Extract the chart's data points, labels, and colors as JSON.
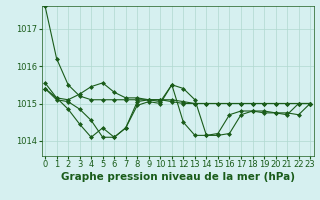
{
  "title": "Graphe pression niveau de la mer (hPa)",
  "bg_color": "#d6f0f0",
  "grid_color": "#b0d8d0",
  "line_color": "#1a5c1a",
  "ylim": [
    1013.6,
    1017.6
  ],
  "xlim": [
    -0.3,
    23.3
  ],
  "yticks": [
    1014,
    1015,
    1016,
    1017
  ],
  "xticks": [
    0,
    1,
    2,
    3,
    4,
    5,
    6,
    7,
    8,
    9,
    10,
    11,
    12,
    13,
    14,
    15,
    16,
    17,
    18,
    19,
    20,
    21,
    22,
    23
  ],
  "series": [
    [
      1017.6,
      1016.2,
      1015.5,
      1015.2,
      1015.1,
      1015.1,
      1015.1,
      1015.1,
      1015.1,
      1015.1,
      1015.1,
      1015.1,
      1015.05,
      1015.0,
      1015.0,
      1015.0,
      1015.0,
      1015.0,
      1015.0,
      1015.0,
      1015.0,
      1015.0,
      1015.0,
      1015.0
    ],
    [
      1015.4,
      1015.15,
      1015.1,
      1015.25,
      1015.45,
      1015.55,
      1015.3,
      1015.15,
      1015.15,
      1015.1,
      1015.1,
      1015.05,
      1015.0,
      1015.0,
      1015.0,
      1015.0,
      1015.0,
      1015.0,
      1015.0,
      1015.0,
      1015.0,
      1015.0,
      1015.0,
      1015.0
    ],
    [
      1015.4,
      1015.1,
      1015.05,
      1014.85,
      1014.55,
      1014.1,
      1014.1,
      1014.35,
      1015.05,
      1015.1,
      1015.05,
      1015.5,
      1015.4,
      1015.1,
      1014.15,
      1014.15,
      1014.2,
      1014.7,
      1014.8,
      1014.8,
      1014.75,
      1014.75,
      1014.7,
      1015.0
    ],
    [
      1015.55,
      1015.15,
      1014.85,
      1014.45,
      1014.1,
      1014.35,
      1014.1,
      1014.35,
      1014.95,
      1015.05,
      1015.0,
      1015.5,
      1014.5,
      1014.15,
      1014.15,
      1014.2,
      1014.7,
      1014.8,
      1014.8,
      1014.75,
      1014.75,
      1014.7,
      1015.0,
      1015.0
    ]
  ],
  "marker": "D",
  "markersize": 2.0,
  "linewidth": 0.8,
  "title_fontsize": 7.5,
  "tick_fontsize": 6.0,
  "xlabel_fontsize": 7.0
}
